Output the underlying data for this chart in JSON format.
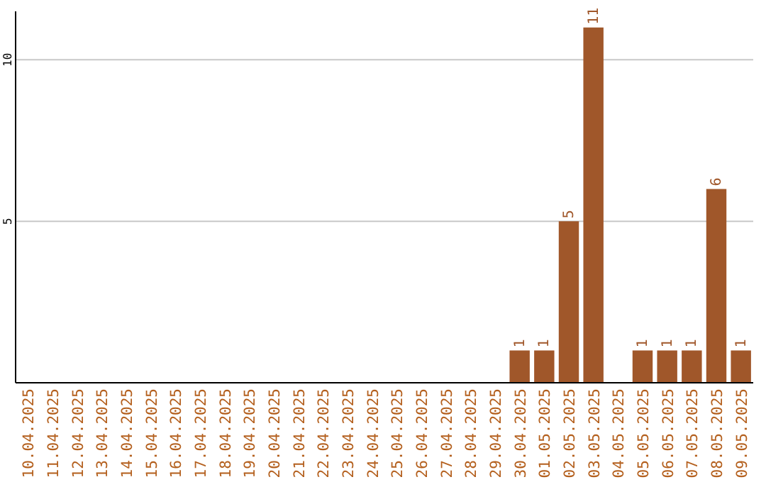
{
  "chart_data": {
    "type": "bar",
    "categories": [
      "10.04.2025",
      "11.04.2025",
      "12.04.2025",
      "13.04.2025",
      "14.04.2025",
      "15.04.2025",
      "16.04.2025",
      "17.04.2025",
      "18.04.2025",
      "19.04.2025",
      "20.04.2025",
      "21.04.2025",
      "22.04.2025",
      "23.04.2025",
      "24.04.2025",
      "25.04.2025",
      "26.04.2025",
      "27.04.2025",
      "28.04.2025",
      "29.04.2025",
      "30.04.2025",
      "01.05.2025",
      "02.05.2025",
      "03.05.2025",
      "04.05.2025",
      "05.05.2025",
      "06.05.2025",
      "07.05.2025",
      "08.05.2025",
      "09.05.2025"
    ],
    "values": [
      0,
      0,
      0,
      0,
      0,
      0,
      0,
      0,
      0,
      0,
      0,
      0,
      0,
      0,
      0,
      0,
      0,
      0,
      0,
      0,
      1,
      1,
      5,
      11,
      0,
      1,
      1,
      1,
      6,
      1
    ],
    "value_labels": [
      null,
      null,
      null,
      null,
      null,
      null,
      null,
      null,
      null,
      null,
      null,
      null,
      null,
      null,
      null,
      null,
      null,
      null,
      null,
      null,
      "1",
      "1",
      "5",
      "11",
      null,
      "1",
      "1",
      "1",
      "6",
      "1"
    ],
    "color": "#a0572a",
    "ylim": [
      0,
      11.5
    ],
    "yticks": [
      5,
      10
    ],
    "grid": "y"
  }
}
